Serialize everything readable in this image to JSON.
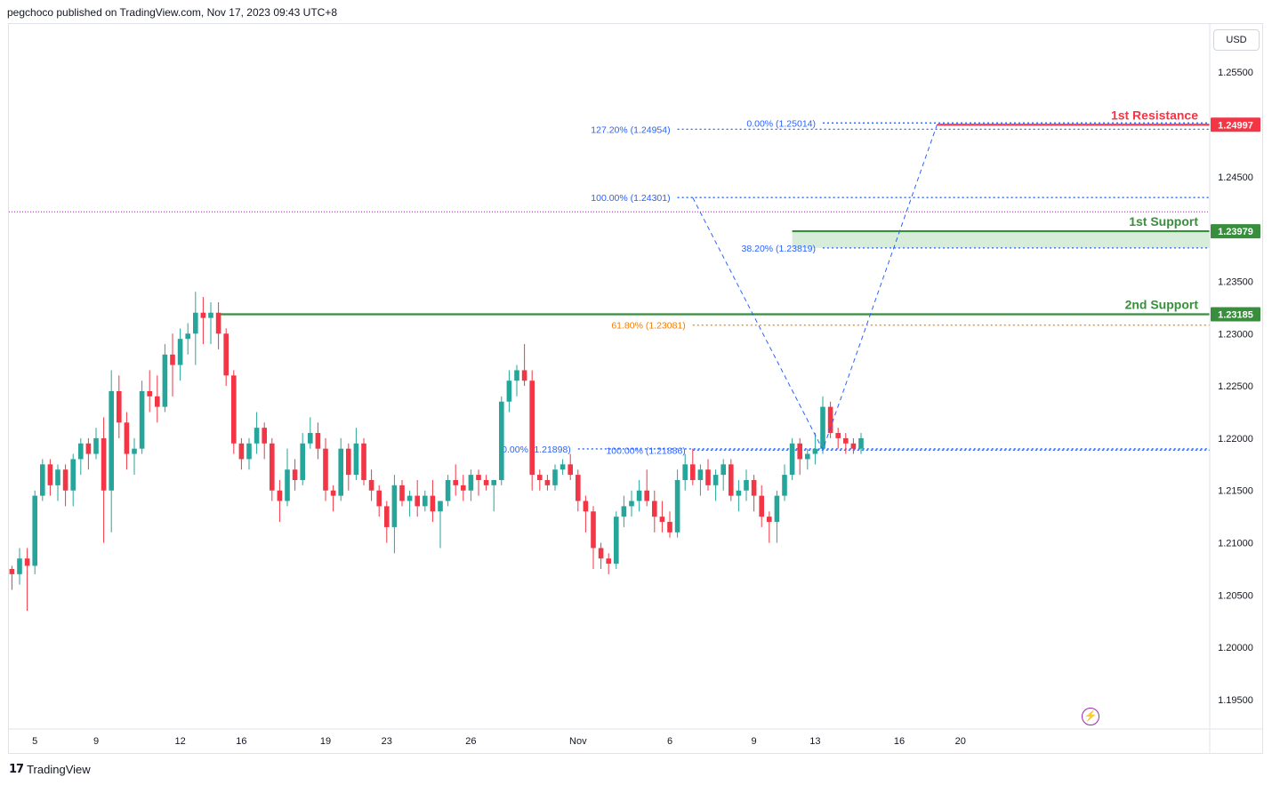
{
  "header": {
    "attribution": "pegchoco published on TradingView.com, Nov 17, 2023 09:43 UTC+8"
  },
  "currency": "USD",
  "footer": {
    "brand_glyph": "17",
    "brand": "TradingView"
  },
  "colors": {
    "up": "#26a69a",
    "down": "#f23645",
    "support": "#388e3c",
    "resistance": "#f23645",
    "fib": "#2962ff",
    "fib_orange": "#f57c00",
    "current": "#9c27b0"
  },
  "chart_data": {
    "type": "candlestick",
    "title": "",
    "y_axis": {
      "ticks": [
        1.255,
        1.245,
        1.235,
        1.23,
        1.225,
        1.22,
        1.215,
        1.21,
        1.205,
        1.2,
        1.195
      ],
      "tick_labels": [
        "1.25500",
        "1.24500",
        "1.23500",
        "1.23000",
        "1.22500",
        "1.22000",
        "1.21500",
        "1.21000",
        "1.20500",
        "1.20000",
        "1.19500"
      ],
      "range": [
        1.1922,
        1.2596
      ]
    },
    "x_axis": {
      "ticks": [
        {
          "label": "5",
          "index": 3
        },
        {
          "label": "9",
          "index": 11
        },
        {
          "label": "12",
          "index": 22
        },
        {
          "label": "16",
          "index": 30
        },
        {
          "label": "19",
          "index": 41
        },
        {
          "label": "23",
          "index": 49
        },
        {
          "label": "26",
          "index": 60
        },
        {
          "label": "Nov",
          "index": 74
        },
        {
          "label": "6",
          "index": 86
        },
        {
          "label": "9",
          "index": 97
        },
        {
          "label": "13",
          "index": 105
        },
        {
          "label": "16",
          "index": 116
        },
        {
          "label": "20",
          "index": 124
        }
      ]
    },
    "levels": [
      {
        "label": "1st Resistance",
        "value": 1.24997,
        "price_label": "1.24997",
        "role": "resistance"
      },
      {
        "label": "1st Support",
        "value": 1.23979,
        "price_label": "1.23979",
        "role": "support"
      },
      {
        "label": "2nd Support",
        "value": 1.23185,
        "price_label": "1.23185",
        "role": "support"
      }
    ],
    "fib_levels": [
      {
        "label": "0.00% (1.25014)",
        "value": 1.25014,
        "from_index": 106,
        "color": "fib"
      },
      {
        "label": "127.20% (1.24954)",
        "value": 1.24954,
        "from_index": 87,
        "color": "fib"
      },
      {
        "label": "100.00% (1.24301)",
        "value": 1.24301,
        "from_index": 87,
        "color": "fib"
      },
      {
        "label": "38.20% (1.23819)",
        "value": 1.23819,
        "from_index": 106,
        "color": "fib"
      },
      {
        "label": "61.80% (1.23081)",
        "value": 1.23081,
        "from_index": 89,
        "color": "fib_orange"
      },
      {
        "label": "0.00% (1.21898)",
        "value": 1.21898,
        "from_index": 74,
        "color": "fib"
      },
      {
        "label": "100.00% (1.21886)",
        "value": 1.21886,
        "from_index": 89,
        "color": "fib"
      }
    ],
    "current_price": 1.24165,
    "candles": [
      [
        1.2075,
        1.2078,
        1.2055,
        1.207
      ],
      [
        1.207,
        1.2095,
        1.206,
        1.2085
      ],
      [
        1.2085,
        1.2095,
        1.2035,
        1.2078
      ],
      [
        1.2078,
        1.215,
        1.207,
        1.2145
      ],
      [
        1.2145,
        1.218,
        1.214,
        1.2175
      ],
      [
        1.2175,
        1.218,
        1.2145,
        1.2155
      ],
      [
        1.2155,
        1.2175,
        1.214,
        1.217
      ],
      [
        1.217,
        1.2175,
        1.2135,
        1.215
      ],
      [
        1.215,
        1.2185,
        1.2135,
        1.218
      ],
      [
        1.218,
        1.22,
        1.2165,
        1.2195
      ],
      [
        1.2195,
        1.22,
        1.217,
        1.2185
      ],
      [
        1.2185,
        1.221,
        1.218,
        1.22
      ],
      [
        1.22,
        1.222,
        1.21,
        1.215
      ],
      [
        1.215,
        1.2265,
        1.211,
        1.2245
      ],
      [
        1.2245,
        1.226,
        1.22,
        1.2215
      ],
      [
        1.2215,
        1.2225,
        1.217,
        1.2185
      ],
      [
        1.2185,
        1.22,
        1.2165,
        1.219
      ],
      [
        1.219,
        1.2255,
        1.2185,
        1.2245
      ],
      [
        1.2245,
        1.2265,
        1.2225,
        1.224
      ],
      [
        1.224,
        1.226,
        1.2215,
        1.223
      ],
      [
        1.223,
        1.229,
        1.2225,
        1.228
      ],
      [
        1.228,
        1.23,
        1.224,
        1.227
      ],
      [
        1.227,
        1.2305,
        1.2255,
        1.2295
      ],
      [
        1.2295,
        1.231,
        1.228,
        1.23
      ],
      [
        1.23,
        1.234,
        1.227,
        1.232
      ],
      [
        1.232,
        1.2335,
        1.229,
        1.2315
      ],
      [
        1.2315,
        1.233,
        1.229,
        1.232
      ],
      [
        1.232,
        1.233,
        1.2285,
        1.23
      ],
      [
        1.23,
        1.2305,
        1.225,
        1.226
      ],
      [
        1.226,
        1.2265,
        1.2185,
        1.2195
      ],
      [
        1.2195,
        1.22,
        1.217,
        1.218
      ],
      [
        1.218,
        1.22,
        1.217,
        1.2195
      ],
      [
        1.2195,
        1.2225,
        1.2185,
        1.221
      ],
      [
        1.221,
        1.2215,
        1.218,
        1.2195
      ],
      [
        1.2195,
        1.22,
        1.214,
        1.215
      ],
      [
        1.215,
        1.216,
        1.212,
        1.214
      ],
      [
        1.214,
        1.219,
        1.2135,
        1.217
      ],
      [
        1.217,
        1.218,
        1.215,
        1.216
      ],
      [
        1.216,
        1.2205,
        1.2155,
        1.2195
      ],
      [
        1.2195,
        1.222,
        1.219,
        1.2205
      ],
      [
        1.2205,
        1.2215,
        1.218,
        1.219
      ],
      [
        1.219,
        1.22,
        1.214,
        1.215
      ],
      [
        1.215,
        1.2155,
        1.213,
        1.2145
      ],
      [
        1.2145,
        1.22,
        1.214,
        1.219
      ],
      [
        1.219,
        1.2195,
        1.215,
        1.2165
      ],
      [
        1.2165,
        1.221,
        1.216,
        1.2195
      ],
      [
        1.2195,
        1.22,
        1.2155,
        1.216
      ],
      [
        1.216,
        1.217,
        1.214,
        1.215
      ],
      [
        1.215,
        1.2155,
        1.2125,
        1.2135
      ],
      [
        1.2135,
        1.214,
        1.21,
        1.2115
      ],
      [
        1.2115,
        1.2165,
        1.209,
        1.2155
      ],
      [
        1.2155,
        1.216,
        1.2135,
        1.214
      ],
      [
        1.214,
        1.215,
        1.2125,
        1.2145
      ],
      [
        1.2145,
        1.216,
        1.2125,
        1.2135
      ],
      [
        1.2135,
        1.215,
        1.213,
        1.2145
      ],
      [
        1.2145,
        1.216,
        1.212,
        1.213
      ],
      [
        1.213,
        1.214,
        1.2095,
        1.214
      ],
      [
        1.214,
        1.2165,
        1.2135,
        1.216
      ],
      [
        1.216,
        1.2175,
        1.2145,
        1.2155
      ],
      [
        1.2155,
        1.2165,
        1.214,
        1.215
      ],
      [
        1.215,
        1.217,
        1.214,
        1.2165
      ],
      [
        1.2165,
        1.217,
        1.2145,
        1.216
      ],
      [
        1.216,
        1.2165,
        1.215,
        1.2155
      ],
      [
        1.2155,
        1.216,
        1.213,
        1.216
      ],
      [
        1.216,
        1.224,
        1.2155,
        1.2235
      ],
      [
        1.2235,
        1.2265,
        1.2225,
        1.2255
      ],
      [
        1.2255,
        1.227,
        1.224,
        1.2265
      ],
      [
        1.2265,
        1.229,
        1.225,
        1.2255
      ],
      [
        1.2255,
        1.2265,
        1.215,
        1.2165
      ],
      [
        1.2165,
        1.217,
        1.215,
        1.216
      ],
      [
        1.216,
        1.2165,
        1.215,
        1.2155
      ],
      [
        1.2155,
        1.2175,
        1.215,
        1.217
      ],
      [
        1.217,
        1.218,
        1.2165,
        1.2175
      ],
      [
        1.2175,
        1.2185,
        1.216,
        1.2165
      ],
      [
        1.2165,
        1.217,
        1.213,
        1.214
      ],
      [
        1.214,
        1.2145,
        1.211,
        1.213
      ],
      [
        1.213,
        1.2135,
        1.2075,
        1.2095
      ],
      [
        1.2095,
        1.21,
        1.2075,
        1.2085
      ],
      [
        1.2085,
        1.209,
        1.207,
        1.208
      ],
      [
        1.208,
        1.213,
        1.2075,
        1.2125
      ],
      [
        1.2125,
        1.2145,
        1.2115,
        1.2135
      ],
      [
        1.2135,
        1.215,
        1.2125,
        1.214
      ],
      [
        1.214,
        1.216,
        1.213,
        1.215
      ],
      [
        1.215,
        1.217,
        1.2135,
        1.214
      ],
      [
        1.214,
        1.215,
        1.211,
        1.2125
      ],
      [
        1.2125,
        1.214,
        1.211,
        1.212
      ],
      [
        1.212,
        1.213,
        1.2105,
        1.211
      ],
      [
        1.211,
        1.217,
        1.2105,
        1.216
      ],
      [
        1.216,
        1.2185,
        1.215,
        1.2175
      ],
      [
        1.2175,
        1.219,
        1.2155,
        1.216
      ],
      [
        1.216,
        1.2175,
        1.2145,
        1.217
      ],
      [
        1.217,
        1.218,
        1.215,
        1.2155
      ],
      [
        1.2155,
        1.217,
        1.214,
        1.2165
      ],
      [
        1.2165,
        1.218,
        1.215,
        1.2175
      ],
      [
        1.2175,
        1.218,
        1.214,
        1.2145
      ],
      [
        1.2145,
        1.216,
        1.213,
        1.215
      ],
      [
        1.215,
        1.217,
        1.214,
        1.216
      ],
      [
        1.216,
        1.2165,
        1.213,
        1.2145
      ],
      [
        1.2145,
        1.2155,
        1.2115,
        1.2125
      ],
      [
        1.2125,
        1.213,
        1.21,
        1.212
      ],
      [
        1.212,
        1.215,
        1.21,
        1.2145
      ],
      [
        1.2145,
        1.2175,
        1.214,
        1.2165
      ],
      [
        1.2165,
        1.22,
        1.216,
        1.2195
      ],
      [
        1.2195,
        1.22,
        1.2165,
        1.218
      ],
      [
        1.218,
        1.219,
        1.217,
        1.2185
      ],
      [
        1.2185,
        1.2205,
        1.2175,
        1.219
      ],
      [
        1.219,
        1.224,
        1.2185,
        1.223
      ],
      [
        1.223,
        1.2235,
        1.22,
        1.2205
      ],
      [
        1.2205,
        1.221,
        1.219,
        1.22
      ],
      [
        1.22,
        1.2205,
        1.2185,
        1.2195
      ],
      [
        1.2195,
        1.22,
        1.2185,
        1.219
      ],
      [
        1.219,
        1.2205,
        1.2185,
        1.22
      ]
    ]
  }
}
